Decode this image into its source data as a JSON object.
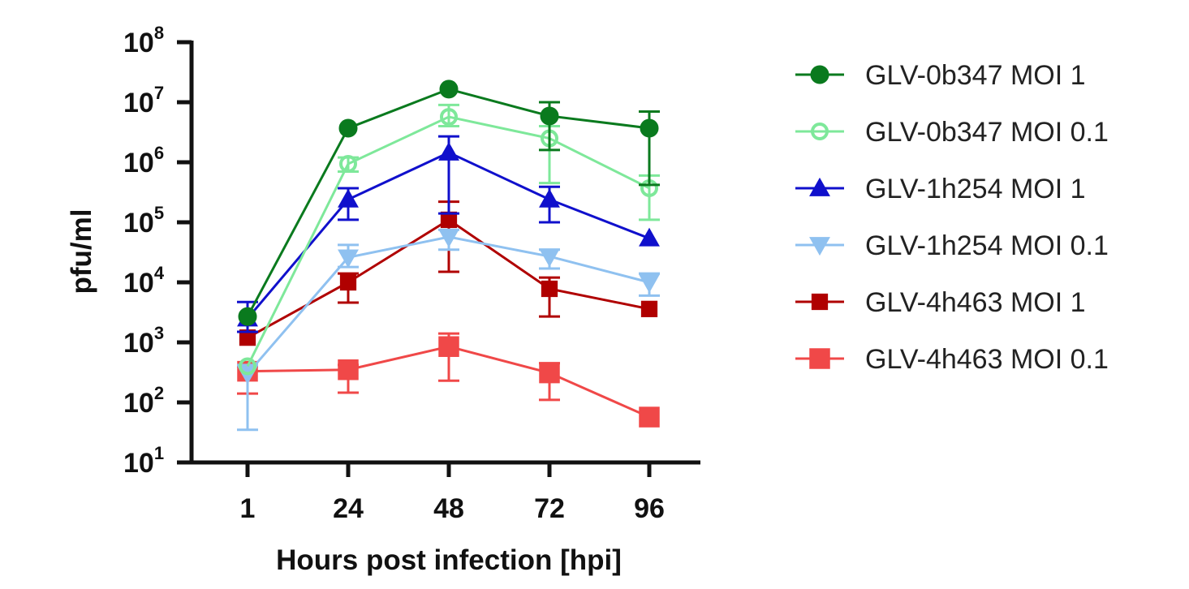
{
  "chart_data": {
    "type": "line",
    "title": "",
    "xlabel": "Hours post infection [hpi]",
    "ylabel": "pfu/ml",
    "y_scale": "log",
    "ylim": [
      10,
      100000000
    ],
    "y_ticks": [
      {
        "base": "10",
        "exp": "1"
      },
      {
        "base": "10",
        "exp": "2"
      },
      {
        "base": "10",
        "exp": "3"
      },
      {
        "base": "10",
        "exp": "4"
      },
      {
        "base": "10",
        "exp": "5"
      },
      {
        "base": "10",
        "exp": "6"
      },
      {
        "base": "10",
        "exp": "7"
      },
      {
        "base": "10",
        "exp": "8"
      }
    ],
    "categories": [
      "1",
      "24",
      "48",
      "72",
      "96"
    ],
    "grid": false,
    "legend_position": "right",
    "series": [
      {
        "name": "GLV-0b347 MOI 1",
        "color": "#0a7a1e",
        "marker": "circle",
        "filled": true,
        "values": [
          2700,
          3700000,
          16500000,
          5900000,
          3700000
        ],
        "error": [
          null,
          null,
          null,
          [
            1600000,
            10000000
          ],
          [
            420000,
            7000000
          ]
        ]
      },
      {
        "name": "GLV-0b347 MOI 0.1",
        "color": "#7ee89a",
        "marker": "circle",
        "filled": false,
        "values": [
          400,
          940000,
          5700000,
          2500000,
          370000
        ],
        "error": [
          null,
          [
            700000,
            1200000
          ],
          [
            4000000,
            9000000
          ],
          [
            450000,
            4000000
          ],
          [
            110000,
            600000
          ]
        ]
      },
      {
        "name": "GLV-1h254 MOI 1",
        "color": "#1010cc",
        "marker": "triangle-up",
        "filled": true,
        "values": [
          2500,
          240000,
          1450000,
          240000,
          54000
        ],
        "error": [
          [
            1500,
            4700
          ],
          [
            110000,
            370000
          ],
          [
            140000,
            2700000
          ],
          [
            100000,
            390000
          ],
          null
        ]
      },
      {
        "name": "GLV-1h254 MOI 0.1",
        "color": "#8fc1f0",
        "marker": "triangle-down",
        "filled": true,
        "values": [
          300,
          26000,
          57000,
          27000,
          10000
        ],
        "error": [
          [
            35,
            420
          ],
          [
            18000,
            42000
          ],
          [
            35000,
            75000
          ],
          [
            17000,
            35000
          ],
          [
            6000,
            14000
          ]
        ]
      },
      {
        "name": "GLV-4h463 MOI 1",
        "color": "#b00000",
        "marker": "square",
        "filled": true,
        "values": [
          1200,
          10000,
          110000,
          7800,
          3600
        ],
        "error": [
          null,
          [
            4600,
            14000
          ],
          [
            15000,
            220000
          ],
          [
            2700,
            12000
          ],
          null
        ]
      },
      {
        "name": "GLV-4h463 MOI 0.1",
        "color": "#f04848",
        "marker": "square",
        "filled": true,
        "values": [
          330,
          350,
          850,
          310,
          57
        ],
        "error": [
          [
            140,
            400
          ],
          [
            145,
            420
          ],
          [
            230,
            1400
          ],
          [
            110,
            450
          ],
          null
        ]
      }
    ]
  }
}
